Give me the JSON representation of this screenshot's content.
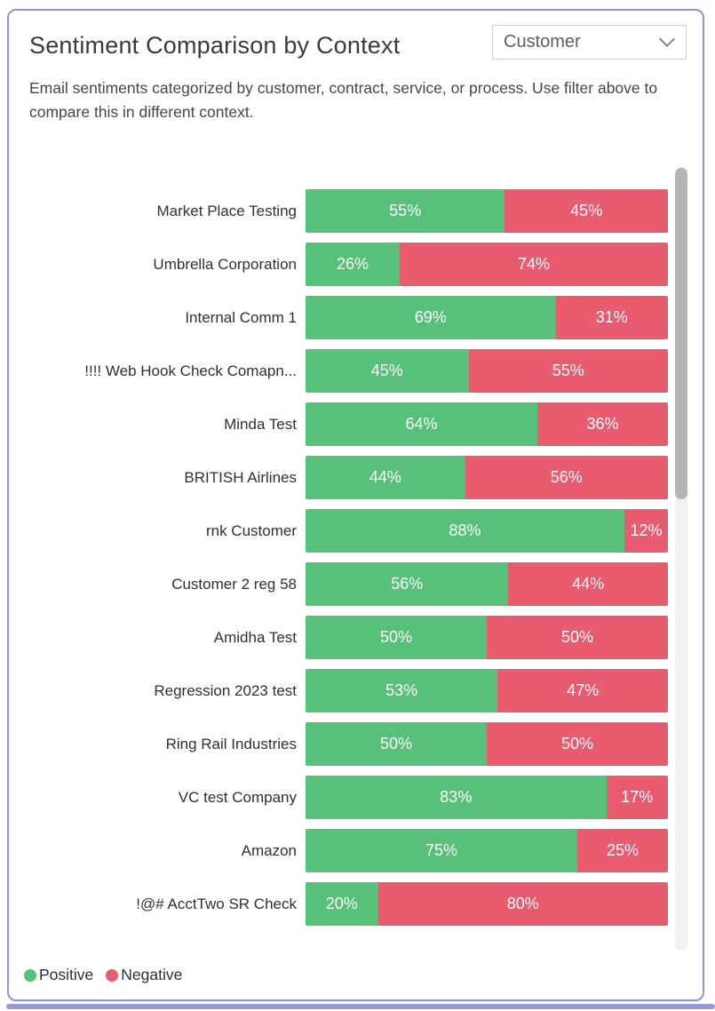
{
  "card": {
    "title": "Sentiment Comparison by Context",
    "subtitle": "Email sentiments categorized by customer, contract, service, or process. Use filter above to compare this in different context."
  },
  "filter_dropdown": {
    "selected_value": "Customer"
  },
  "chart_data": {
    "type": "bar",
    "orientation": "horizontal",
    "stacked": true,
    "value_format": "percent",
    "xlim": [
      0,
      100
    ],
    "grid": false,
    "legend_position": "bottom-left",
    "categories": [
      "Market Place Testing",
      "Umbrella Corporation",
      "Internal Comm 1",
      "!!!! Web Hook Check Comapn...",
      "Minda Test",
      "BRITISH Airlines",
      "rnk Customer",
      "Customer 2 reg 58",
      "Amidha Test",
      "Regression 2023 test",
      "Ring Rail Industries",
      "VC test Company",
      "Amazon",
      "!@# AcctTwo SR Check"
    ],
    "series": [
      {
        "name": "Positive",
        "color": "#57c17a",
        "values": [
          55,
          26,
          69,
          45,
          64,
          44,
          88,
          56,
          50,
          53,
          50,
          83,
          75,
          20
        ]
      },
      {
        "name": "Negative",
        "color": "#e95c6f",
        "values": [
          45,
          74,
          31,
          55,
          36,
          56,
          12,
          44,
          50,
          47,
          50,
          17,
          25,
          80
        ]
      }
    ]
  },
  "legend": {
    "items": [
      {
        "label": "Positive",
        "color": "#57c17a"
      },
      {
        "label": "Negative",
        "color": "#e95c6f"
      }
    ]
  },
  "colors": {
    "positive": "#57c17a",
    "negative": "#e95c6f",
    "card_border": "#8e93db",
    "bottom_band": "#959bd3",
    "scroll_thumb": "#b5b5b5",
    "scroll_track": "#f1f1f1"
  }
}
